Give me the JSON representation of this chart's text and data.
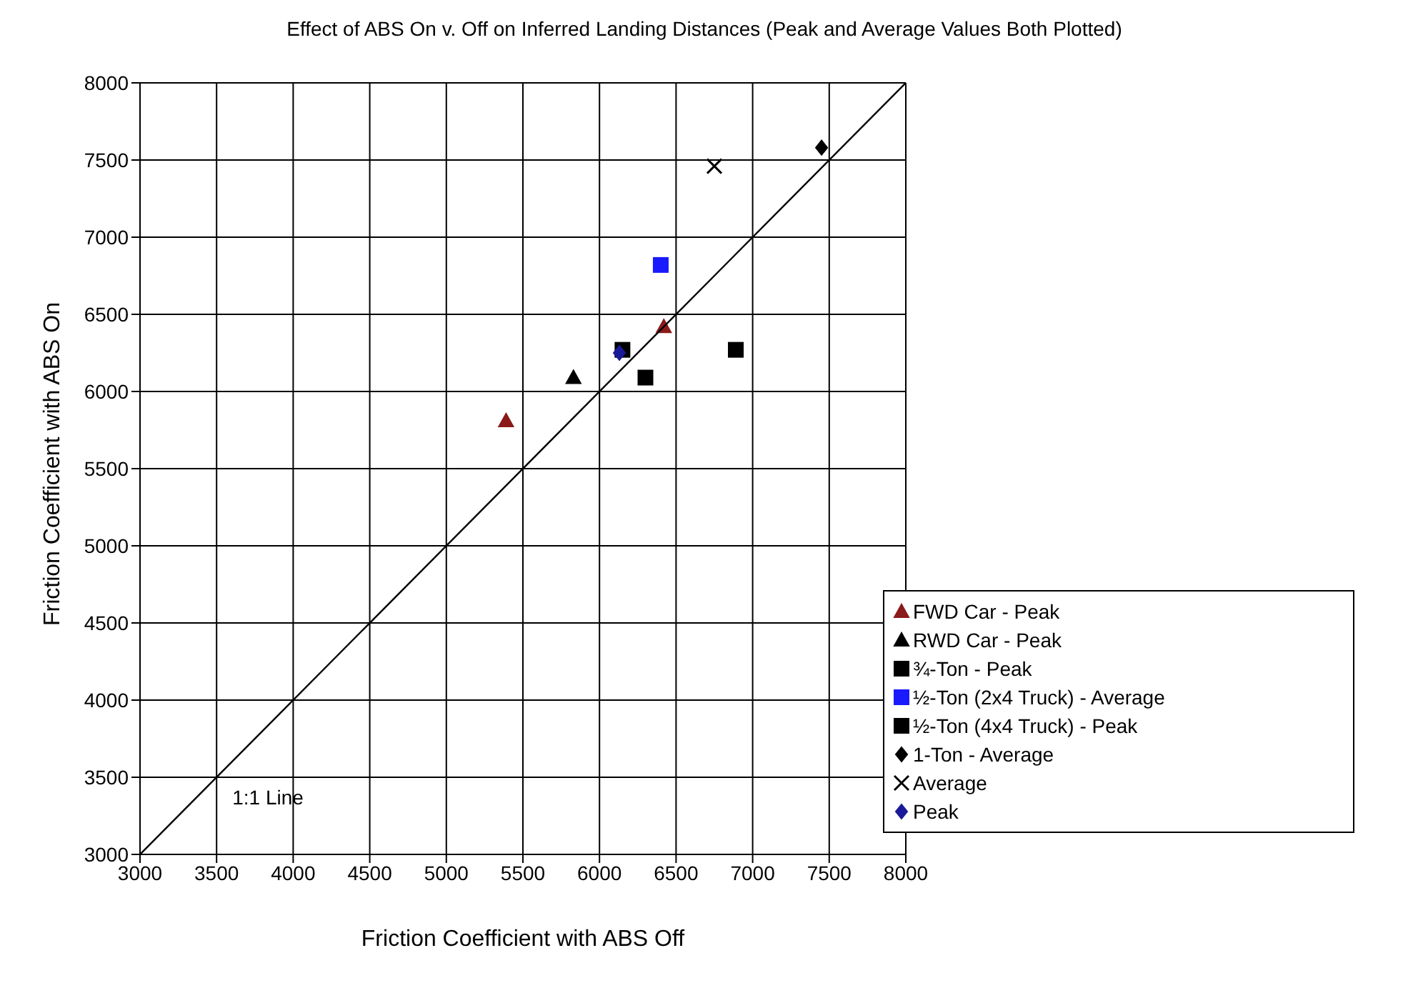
{
  "chart_data": {
    "type": "scatter",
    "title": "Effect of ABS On v. Off on Inferred Landing Distances (Peak and Average Values Both Plotted)",
    "xlabel": "Friction Coefficient with ABS Off",
    "ylabel": "Friction Coefficient with ABS On",
    "xlim": [
      3000,
      8000
    ],
    "ylim": [
      3000,
      8000
    ],
    "xticks": [
      3000,
      3500,
      4000,
      4500,
      5000,
      5500,
      6000,
      6500,
      7000,
      7500,
      8000
    ],
    "yticks": [
      3000,
      3500,
      4000,
      4500,
      5000,
      5500,
      6000,
      6500,
      7000,
      7500,
      8000
    ],
    "grid": true,
    "legend": "bottom right",
    "annotations": [
      {
        "text": "1:1 Line",
        "x": 3500,
        "y": 3500
      }
    ],
    "series": [
      {
        "name": "FWD Car - Peak",
        "color": "#8b1a1a",
        "marker": "triangle",
        "x": [
          5390,
          6420
        ],
        "values": [
          5810,
          6420
        ]
      },
      {
        "name": "RWD Car - Peak",
        "color": "#000000",
        "marker": "triangle",
        "x": [
          5830
        ],
        "values": [
          6090
        ]
      },
      {
        "name": "¾-Ton - Peak",
        "color": "#000000",
        "marker": "square",
        "x": [
          6300
        ],
        "values": [
          6090
        ]
      },
      {
        "name": "½-Ton (2x4 Truck) - Average",
        "color": "#1a1aff",
        "marker": "square",
        "x": [
          6400
        ],
        "values": [
          6820
        ]
      },
      {
        "name": "½-Ton (4x4 Truck) - Peak",
        "color": "#000000",
        "marker": "square",
        "x": [
          6150,
          6890
        ],
        "values": [
          6270,
          6270
        ]
      },
      {
        "name": "1-Ton - Average",
        "color": "#000000",
        "marker": "diamond",
        "x": [
          7450
        ],
        "values": [
          7580
        ]
      },
      {
        "name": "Average",
        "color": "#000000",
        "marker": "cross",
        "x": [
          6750
        ],
        "values": [
          7460
        ]
      },
      {
        "name": "Peak",
        "color": "#1a1a99",
        "marker": "diamond",
        "x": [
          6130
        ],
        "values": [
          6250
        ]
      },
      {
        "type": "line",
        "color": "#000000",
        "marker": "none",
        "x": [
          3000,
          8000
        ],
        "values": [
          3000,
          8000
        ]
      }
    ]
  }
}
